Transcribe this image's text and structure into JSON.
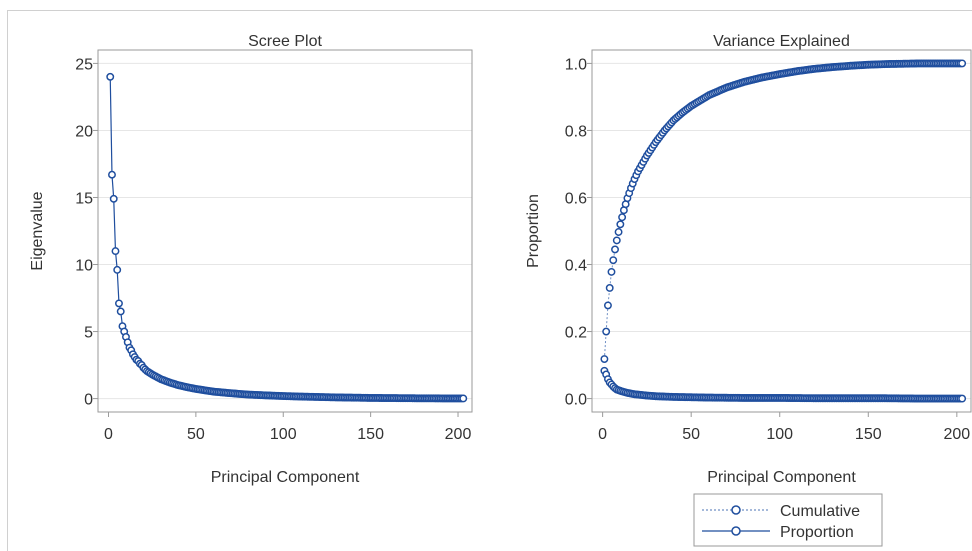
{
  "chart_data": [
    {
      "type": "line",
      "title": "Scree Plot",
      "xlabel": "Principal Component",
      "ylabel": "Eigenvalue",
      "xlim": [
        -6,
        208
      ],
      "ylim": [
        -1,
        26
      ],
      "xticks": [
        0,
        50,
        100,
        150,
        200
      ],
      "yticks": [
        0,
        5,
        10,
        15,
        20,
        25
      ],
      "grid": true,
      "series": [
        {
          "values_note": "",
          "x": [
            1,
            2,
            3,
            4,
            5,
            6,
            7,
            8,
            9,
            10,
            11,
            12,
            13,
            14,
            15,
            16,
            17,
            18,
            19,
            20,
            22,
            25,
            30,
            35,
            40,
            45,
            50,
            60,
            70,
            80,
            90,
            100,
            110,
            120,
            130,
            140,
            150,
            160,
            170,
            180,
            190,
            200,
            203
          ],
          "y": [
            24.0,
            16.7,
            14.9,
            11.0,
            9.6,
            7.1,
            6.5,
            5.4,
            5.0,
            4.6,
            4.2,
            3.8,
            3.6,
            3.3,
            3.1,
            2.9,
            2.8,
            2.6,
            2.5,
            2.3,
            2.05,
            1.8,
            1.45,
            1.2,
            1.0,
            0.85,
            0.72,
            0.52,
            0.4,
            0.3,
            0.24,
            0.19,
            0.15,
            0.12,
            0.09,
            0.07,
            0.05,
            0.04,
            0.03,
            0.02,
            0.015,
            0.01,
            0.01
          ]
        }
      ]
    },
    {
      "type": "line",
      "title": "Variance Explained",
      "xlabel": "Principal Component",
      "ylabel": "Proportion",
      "xlim": [
        -6,
        208
      ],
      "ylim": [
        -0.04,
        1.04
      ],
      "xticks": [
        0,
        50,
        100,
        150,
        200
      ],
      "yticks": [
        "0.0",
        "0.2",
        "0.4",
        "0.6",
        "0.8",
        "1.0"
      ],
      "grid": true,
      "legend": {
        "placement": "bottom",
        "entries": [
          "Cumulative",
          "Proportion"
        ]
      },
      "series": [
        {
          "name": "Cumulative",
          "x": [
            1,
            2,
            3,
            4,
            5,
            6,
            7,
            8,
            9,
            10,
            12,
            14,
            16,
            18,
            20,
            25,
            30,
            35,
            40,
            45,
            50,
            60,
            70,
            80,
            90,
            100,
            110,
            120,
            130,
            140,
            150,
            160,
            170,
            180,
            190,
            200,
            203
          ],
          "y": [
            0.118,
            0.2,
            0.278,
            0.33,
            0.378,
            0.413,
            0.445,
            0.472,
            0.497,
            0.52,
            0.562,
            0.598,
            0.628,
            0.655,
            0.678,
            0.725,
            0.765,
            0.8,
            0.83,
            0.853,
            0.873,
            0.905,
            0.928,
            0.945,
            0.958,
            0.968,
            0.977,
            0.984,
            0.989,
            0.993,
            0.996,
            0.998,
            0.999,
            1.0,
            1.0,
            1.0,
            1.0
          ]
        },
        {
          "name": "Proportion",
          "x": [
            1,
            2,
            3,
            4,
            5,
            6,
            7,
            8,
            9,
            10,
            12,
            14,
            16,
            18,
            20,
            25,
            30,
            35,
            40,
            50,
            60,
            80,
            100,
            120,
            140,
            160,
            180,
            200,
            203
          ],
          "y": [
            0.083,
            0.072,
            0.058,
            0.048,
            0.042,
            0.036,
            0.031,
            0.027,
            0.025,
            0.023,
            0.02,
            0.017,
            0.015,
            0.013,
            0.012,
            0.009,
            0.007,
            0.006,
            0.005,
            0.004,
            0.003,
            0.002,
            0.002,
            0.001,
            0.001,
            0.001,
            0.0,
            0.0,
            0.0
          ]
        }
      ]
    }
  ]
}
